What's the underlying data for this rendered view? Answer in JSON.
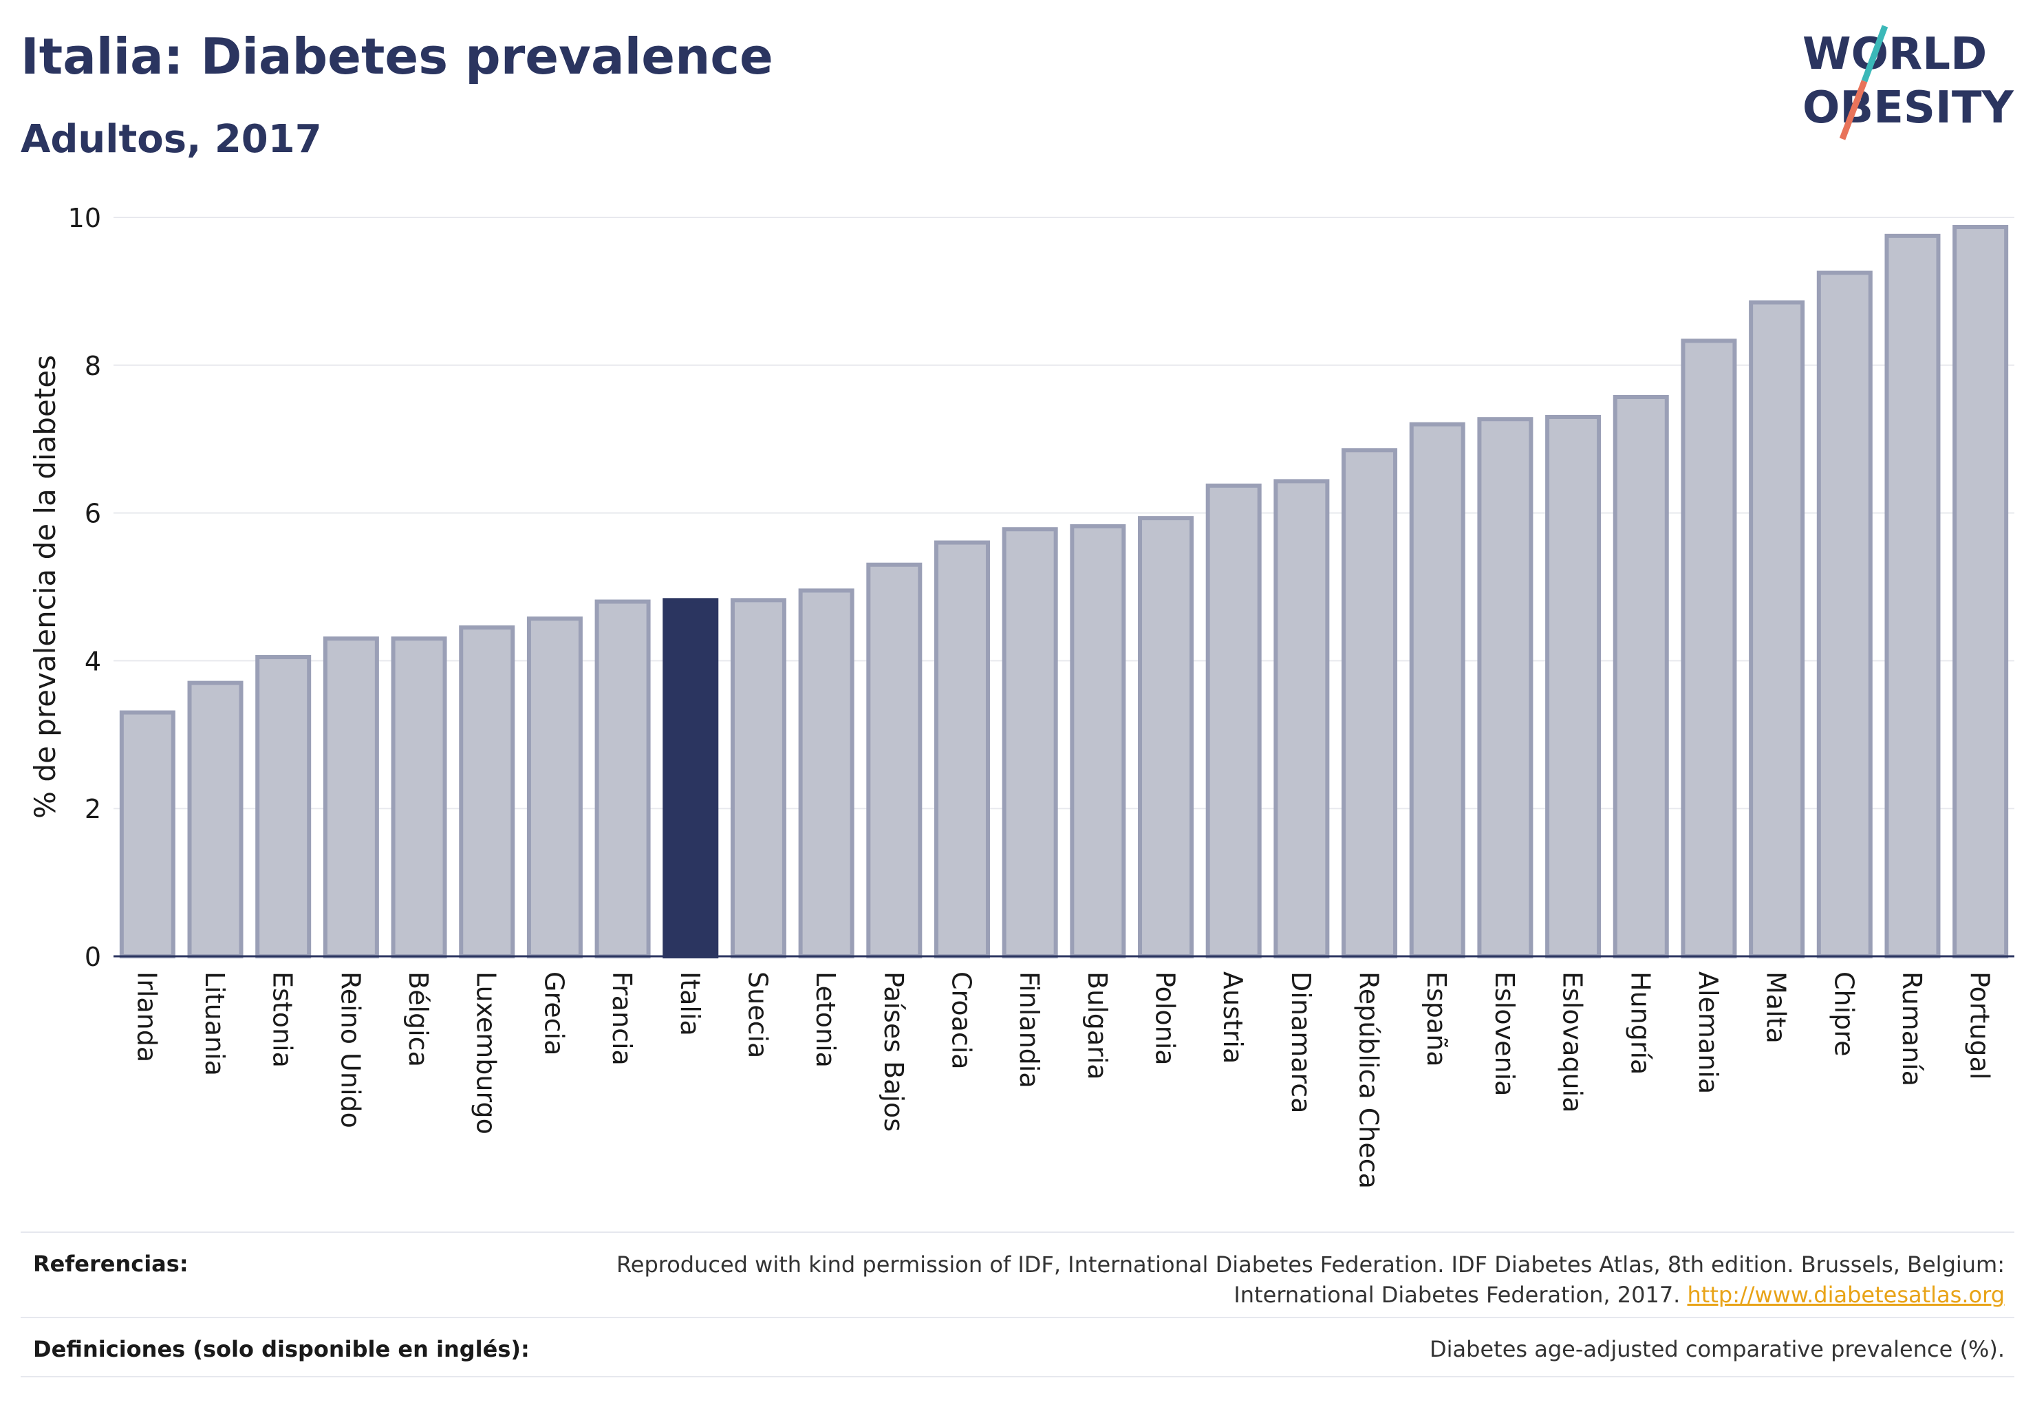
{
  "header": {
    "title": "Italia: Diabetes prevalence",
    "subtitle": "Adultos, 2017"
  },
  "logo": {
    "line1": "WORLD",
    "line2": "OBESITY"
  },
  "colors": {
    "highlight": "#2b3560",
    "bar_fill": "#bfc2ce",
    "bar_stroke": "#9a9fb6",
    "text": "#2b3560",
    "logo_teal": "#3bb8b8",
    "logo_coral": "#e8735a",
    "link": "#e8a317"
  },
  "chart_data": {
    "type": "bar",
    "ylabel": "% de prevalencia de la diabetes",
    "ylim": [
      0,
      10
    ],
    "yticks": [
      0,
      2,
      4,
      6,
      8,
      10
    ],
    "grid": true,
    "highlight": "Italia",
    "categories": [
      "Irlanda",
      "Lituania",
      "Estonia",
      "Reino Unido",
      "Bélgica",
      "Luxemburgo",
      "Grecia",
      "Francia",
      "Italia",
      "Suecia",
      "Letonia",
      "Países Bajos",
      "Croacia",
      "Finlandia",
      "Bulgaria",
      "Polonia",
      "Austria",
      "Dinamarca",
      "República Checa",
      "España",
      "Eslovenia",
      "Eslovaquia",
      "Hungría",
      "Alemania",
      "Malta",
      "Chipre",
      "Rumanía",
      "Portugal"
    ],
    "values": [
      3.3,
      3.7,
      4.05,
      4.3,
      4.3,
      4.45,
      4.57,
      4.8,
      4.82,
      4.82,
      4.95,
      5.3,
      5.6,
      5.78,
      5.82,
      5.93,
      6.37,
      6.43,
      6.85,
      7.2,
      7.27,
      7.3,
      7.57,
      8.33,
      8.85,
      9.25,
      9.75,
      9.87
    ]
  },
  "footer": {
    "references_label": "Referencias:",
    "references_text": "Reproduced with kind permission of IDF, International Diabetes Federation. IDF Diabetes Atlas, 8th edition. Brussels, Belgium: International Diabetes Federation, 2017.",
    "references_link": "http://www.diabetesatlas.org",
    "definitions_label": "Definiciones (solo disponible en inglés):",
    "definitions_text": "Diabetes age-adjusted comparative prevalence (%)."
  }
}
